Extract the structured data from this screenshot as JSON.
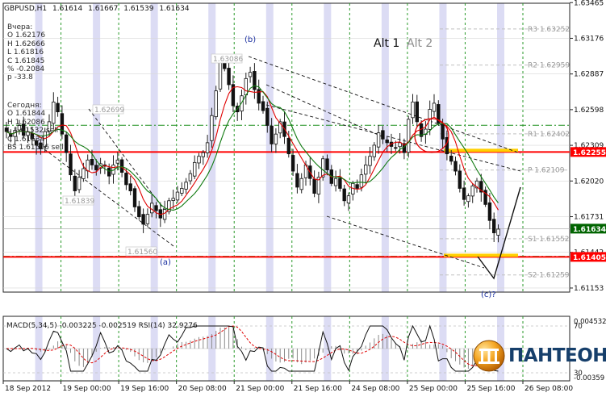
{
  "header": {
    "symbol": "GBPUSD,H1",
    "prices": [
      "1.61614",
      "1.61667",
      "1.61539",
      "1.61634"
    ]
  },
  "info_yesterday": {
    "title": "Вчера:",
    "lines": [
      "O 1.62176",
      "H 1.62666",
      "L 1.61816",
      "C 1.61845",
      "% -0.2084",
      "p -33.8"
    ]
  },
  "info_today": {
    "title": "Сегодня:",
    "lines": [
      "O 1.61844",
      "H 1.62086",
      "L 1.61532 sell",
      "C 1.61634",
      "BS 1.61506 sell"
    ]
  },
  "labels": {
    "alt1": "Alt 1",
    "alt2": "Alt 2",
    "wave_a": "(a)",
    "wave_b": "(b)",
    "wave_c": "(c)?",
    "price_tags": [
      "1.63086",
      "1.62699",
      "1.61839",
      "1.61560"
    ]
  },
  "logo": {
    "text": "ПАНТЕОН",
    "icon": "panteon-logo-icon"
  },
  "colors": {
    "background": "#ffffff",
    "bull_candle": "#008000",
    "bear_candle": "#000000",
    "sma_red": "#e00000",
    "sma_green": "#107a10",
    "level_red": "#ff0000",
    "level_yellow": "#ffd000",
    "grid_green": "#2a9a2a",
    "session_band": "#dcdcf4",
    "current_price_bg": "#006400"
  },
  "chart_data": [
    {
      "type": "line",
      "name": "price",
      "title": "GBPUSD,H1",
      "ylim": [
        1.6112,
        1.6346
      ],
      "y_ticks": [
        "1.63465",
        "1.63176",
        "1.62887",
        "1.62598",
        "1.62309",
        "1.62020",
        "1.61731",
        "1.61442",
        "1.61153"
      ],
      "x_ticks": [
        "18 Sep 2012",
        "19 Sep 00:00",
        "19 Sep 16:00",
        "20 Sep 08:00",
        "21 Sep 00:00",
        "21 Sep 16:00",
        "24 Sep 08:00",
        "25 Sep 00:00",
        "25 Sep 16:00",
        "26 Sep 08:00"
      ],
      "close": [
        1.6242,
        1.6238,
        1.6243,
        1.6247,
        1.6239,
        1.6242,
        1.6236,
        1.6231,
        1.6228,
        1.6242,
        1.625,
        1.6266,
        1.6258,
        1.624,
        1.6225,
        1.6207,
        1.6194,
        1.6205,
        1.6212,
        1.6219,
        1.6215,
        1.6211,
        1.6216,
        1.6214,
        1.6206,
        1.6215,
        1.6219,
        1.6209,
        1.6199,
        1.6194,
        1.6181,
        1.6173,
        1.6167,
        1.6175,
        1.6184,
        1.6178,
        1.6172,
        1.6179,
        1.6186,
        1.6188,
        1.6193,
        1.6196,
        1.6201,
        1.6208,
        1.6217,
        1.6222,
        1.6225,
        1.6233,
        1.6255,
        1.6275,
        1.6301,
        1.6293,
        1.628,
        1.6263,
        1.6258,
        1.6271,
        1.6285,
        1.629,
        1.6276,
        1.6265,
        1.6259,
        1.6247,
        1.6232,
        1.624,
        1.625,
        1.6238,
        1.6224,
        1.621,
        1.6197,
        1.6204,
        1.6215,
        1.6204,
        1.6192,
        1.6205,
        1.622,
        1.6211,
        1.62,
        1.6204,
        1.6196,
        1.6186,
        1.619,
        1.62,
        1.6196,
        1.6207,
        1.6215,
        1.6222,
        1.6231,
        1.6241,
        1.6236,
        1.6233,
        1.623,
        1.6229,
        1.6233,
        1.6225,
        1.6252,
        1.6266,
        1.625,
        1.6238,
        1.6244,
        1.626,
        1.6265,
        1.6249,
        1.6236,
        1.6224,
        1.6218,
        1.621,
        1.6196,
        1.6187,
        1.619,
        1.6198,
        1.6202,
        1.6193,
        1.6183,
        1.617,
        1.616,
        1.6163
      ],
      "lines": {
        "support": {
          "value": 1.61405,
          "label": "1.61405"
        },
        "resistance": {
          "value": 1.62255,
          "label": "1.62255"
        },
        "current": {
          "value": 1.61634,
          "label": "1.61634"
        }
      },
      "pivots": [
        {
          "name": "R3",
          "value": 1.63252,
          "label": "R3 1.63252"
        },
        {
          "name": "R2",
          "value": 1.62959,
          "label": "R2 1.62959"
        },
        {
          "name": "R1",
          "value": 1.62402,
          "label": "R1 1.62402"
        },
        {
          "name": "P",
          "value": 1.62109,
          "label": "P 1.62109"
        },
        {
          "name": "S1",
          "value": 1.61552,
          "label": "S1 1.61552"
        },
        {
          "name": "S2",
          "value": 1.61259,
          "label": "S2 1.61259"
        }
      ]
    },
    {
      "type": "line",
      "name": "oscillators",
      "title": "MACD(5,34,5) -0.003225 -0.002519 RSI(14) 32.9276",
      "ylim": [
        -0.00359,
        0.004532
      ],
      "y_ticks": [
        "0.004532",
        "-0.00359"
      ],
      "rsi_levels": [
        "70",
        "30"
      ]
    }
  ]
}
